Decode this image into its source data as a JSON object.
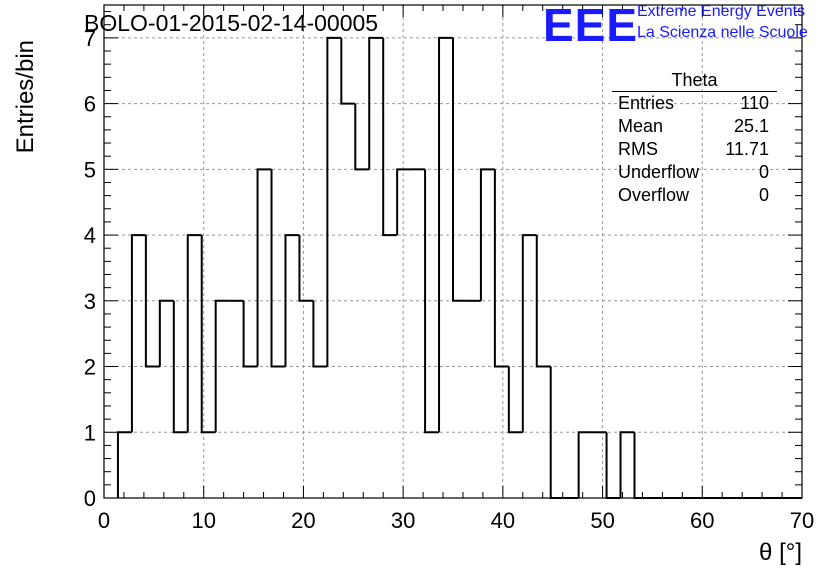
{
  "header": {
    "run_title": "BOLO-01-2015-02-14-00005",
    "logo_text": "EEE",
    "logo_line1": "Extreme Energy Events",
    "logo_line2": "La Scienza nelle Scuole"
  },
  "stats": {
    "title": "Theta",
    "rows": [
      {
        "label": "Entries",
        "value": "110"
      },
      {
        "label": "Mean",
        "value": "25.1"
      },
      {
        "label": "RMS",
        "value": "11.71"
      },
      {
        "label": "Underflow",
        "value": "0"
      },
      {
        "label": "Overflow",
        "value": "0"
      }
    ]
  },
  "colors": {
    "logo": "#1a1aff",
    "line": "#000000",
    "grid": "#999999"
  },
  "chart_data": {
    "type": "histogram",
    "xlabel": "θ [°]",
    "ylabel": "Entries/bin",
    "xlim": [
      0,
      70
    ],
    "ylim": [
      0,
      7.5
    ],
    "grid": true,
    "bin_width": 1.4,
    "bin_start": 1.4,
    "values": [
      1,
      4,
      2,
      3,
      1,
      4,
      1,
      3,
      3,
      2,
      5,
      2,
      4,
      3,
      2,
      7,
      6,
      5,
      7,
      4,
      5,
      5,
      1,
      7,
      3,
      3,
      5,
      2,
      1,
      4,
      2,
      0,
      0,
      1,
      1,
      0,
      1,
      0,
      0,
      0,
      0,
      0,
      0,
      0,
      0,
      0,
      0,
      0,
      0
    ],
    "xticks": [
      "0",
      "10",
      "20",
      "30",
      "40",
      "50",
      "60",
      "70"
    ],
    "yticks": [
      "0",
      "1",
      "2",
      "3",
      "4",
      "5",
      "6",
      "7"
    ]
  }
}
